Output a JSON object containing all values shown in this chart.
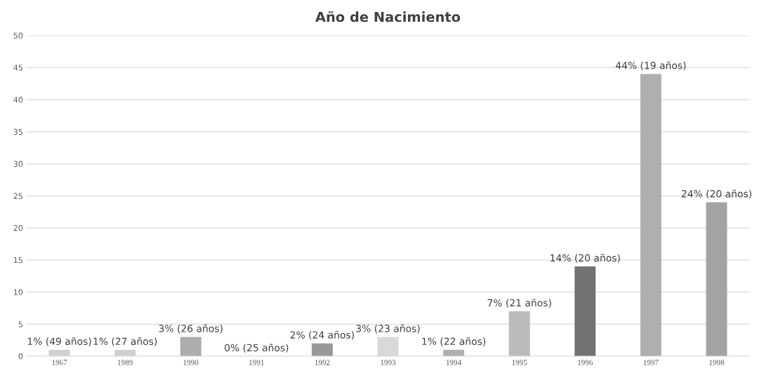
{
  "chart_data": {
    "type": "bar",
    "title": "Año de Nacimiento",
    "categories": [
      "1967",
      "1989",
      "1990",
      "1991",
      "1992",
      "1993",
      "1994",
      "1995",
      "1996",
      "1997",
      "1998"
    ],
    "values": [
      1,
      1,
      3,
      0,
      2,
      3,
      1,
      7,
      14,
      44,
      24
    ],
    "colors": [
      "#d0d0d0",
      "#d0d0d0",
      "#adadad",
      "#a8a8a8",
      "#999999",
      "#d9d9d9",
      "#b0b0b0",
      "#bbbbbb",
      "#727272",
      "#afafaf",
      "#a3a3a3"
    ],
    "value_labels": [
      "1% (49 años)",
      "1% (27 años)",
      "3% (26 años)",
      "0% (25 años)",
      "2% (24 años)",
      "3% (23 años)",
      "1% (22 años)",
      "7% (21 años)",
      "14% (20 años)",
      "44% (19 años)",
      "24% (20 años)"
    ],
    "ylim": [
      0,
      50
    ],
    "yticks": [
      0,
      5,
      10,
      15,
      20,
      25,
      30,
      35,
      40,
      45,
      50
    ],
    "grid": "y"
  }
}
